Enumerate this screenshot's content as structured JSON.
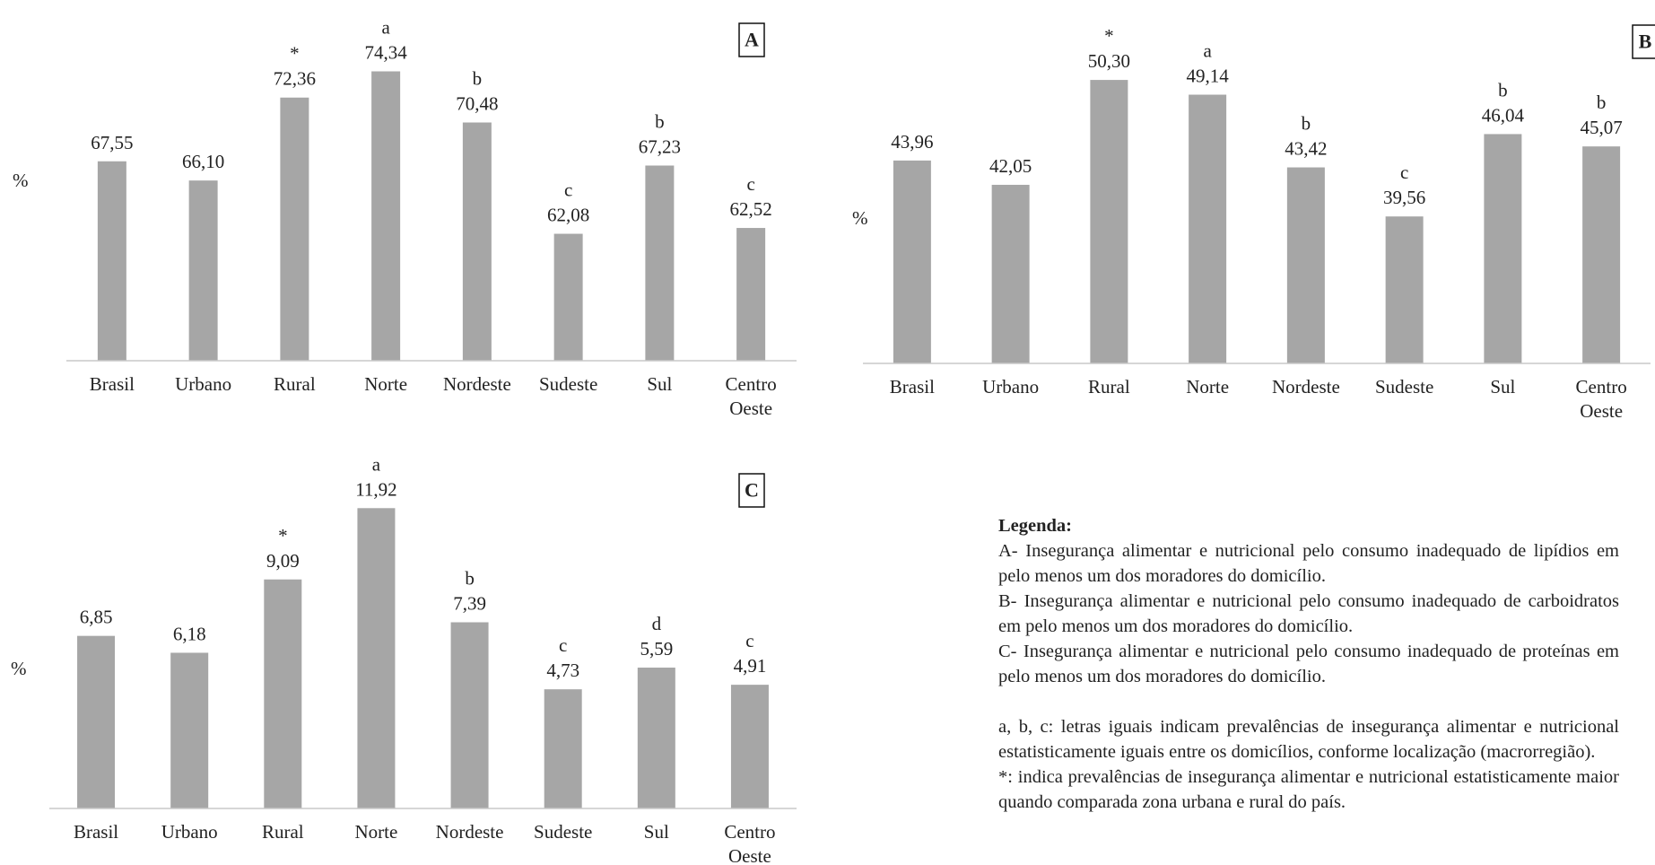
{
  "chart_data": [
    {
      "type": "bar",
      "panel": "A",
      "ylabel": "%",
      "categories": [
        [
          "Brasil"
        ],
        [
          "Urbano"
        ],
        [
          "Rural"
        ],
        [
          "Norte"
        ],
        [
          "Nordeste"
        ],
        [
          "Sudeste"
        ],
        [
          "Sul"
        ],
        [
          "Centro",
          "Oeste"
        ]
      ],
      "values": [
        67.55,
        66.1,
        72.36,
        74.34,
        70.48,
        62.08,
        67.23,
        62.52
      ],
      "value_labels": [
        "67,55",
        "66,10",
        "72,36",
        "74,34",
        "70,48",
        "62,08",
        "67,23",
        "62,52"
      ],
      "annotations": [
        "",
        "",
        "*",
        "a",
        "b",
        "c",
        "b",
        "c"
      ],
      "ylim": [
        52.5,
        76
      ],
      "bar_color": "#a6a6a6",
      "grid": false
    },
    {
      "type": "bar",
      "panel": "B",
      "ylabel": "%",
      "categories": [
        [
          "Brasil"
        ],
        [
          "Urbano"
        ],
        [
          "Rural"
        ],
        [
          "Norte"
        ],
        [
          "Nordeste"
        ],
        [
          "Sudeste"
        ],
        [
          "Sul"
        ],
        [
          "Centro",
          "Oeste"
        ]
      ],
      "values": [
        43.96,
        42.05,
        50.3,
        49.14,
        43.42,
        39.56,
        46.04,
        45.07
      ],
      "value_labels": [
        "43,96",
        "42,05",
        "50,30",
        "49,14",
        "43,42",
        "39,56",
        "46,04",
        "45,07"
      ],
      "annotations": [
        "",
        "",
        "*",
        "a",
        "b",
        "c",
        "b",
        "b"
      ],
      "ylim": [
        28,
        52
      ],
      "bar_color": "#a6a6a6",
      "grid": false
    },
    {
      "type": "bar",
      "panel": "C",
      "ylabel": "%",
      "categories": [
        [
          "Brasil"
        ],
        [
          "Urbano"
        ],
        [
          "Rural"
        ],
        [
          "Norte"
        ],
        [
          "Nordeste"
        ],
        [
          "Sudeste"
        ],
        [
          "Sul"
        ],
        [
          "Centro",
          "Oeste"
        ]
      ],
      "values": [
        6.85,
        6.18,
        9.09,
        11.92,
        7.39,
        4.73,
        5.59,
        4.91
      ],
      "value_labels": [
        "6,85",
        "6,18",
        "9,09",
        "11,92",
        "7,39",
        "4,73",
        "5,59",
        "4,91"
      ],
      "annotations": [
        "",
        "",
        "*",
        "a",
        "b",
        "c",
        "d",
        "c"
      ],
      "ylim": [
        0,
        12.5
      ],
      "bar_color": "#a6a6a6",
      "grid": false
    }
  ],
  "legend": {
    "title": "Legenda:",
    "line_a": "A- Insegurança alimentar e nutricional pelo consumo inadequado de lipídios em pelo menos um dos moradores do domicílio.",
    "line_b": "B- Insegurança alimentar e nutricional pelo consumo inadequado de carboidratos em pelo menos um dos moradores do domicílio.",
    "line_c": "C- Insegurança alimentar e nutricional pelo consumo inadequado de proteínas em pelo menos um dos moradores do domicílio.",
    "note_letters": "a, b, c: letras iguais indicam prevalências de insegurança alimentar e nutricional estatisticamente iguais entre os domicílios, conforme localização (macrorregião).",
    "note_asterisk": "*: indica prevalências de insegurança alimentar e nutricional estatisticamente maior quando comparada zona urbana e rural do país."
  }
}
